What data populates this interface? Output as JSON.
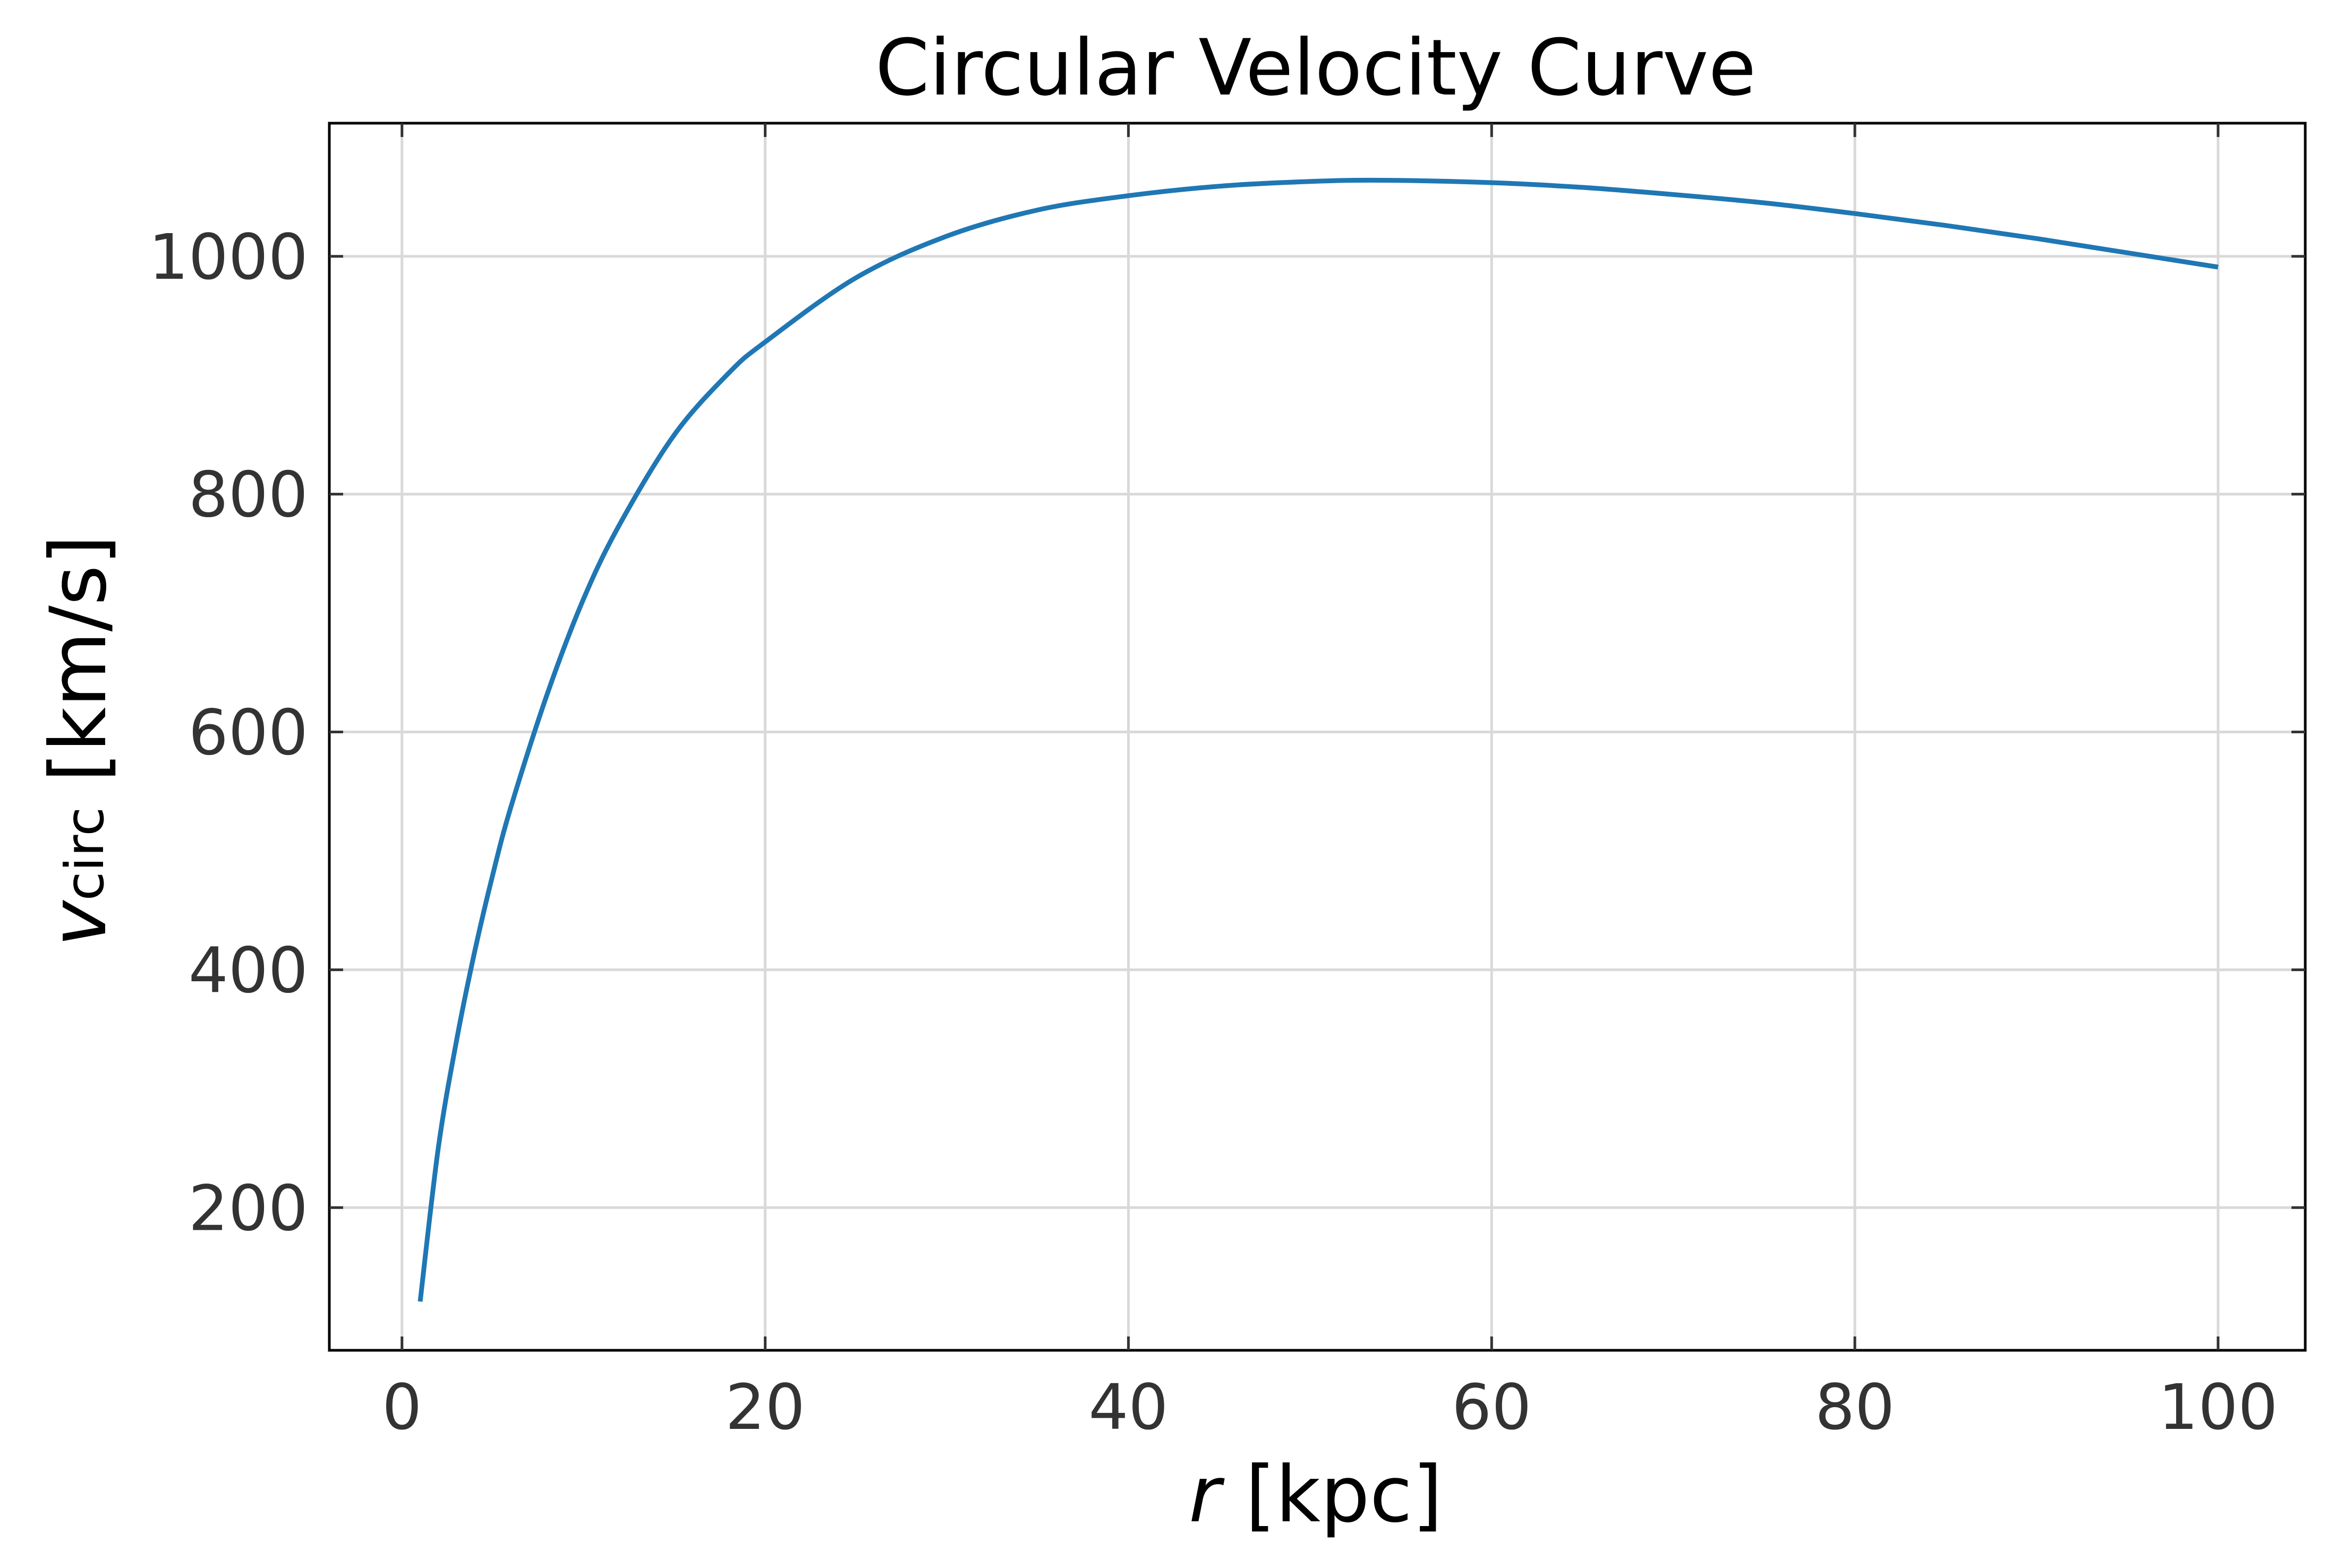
{
  "chart_data": {
    "type": "line",
    "title": "Circular Velocity Curve",
    "xlabel": {
      "symbol": "r",
      "unit": " [kpc]"
    },
    "ylabel": {
      "symbol": "v",
      "subscript": "circ",
      "unit": " [km/s]"
    },
    "xlim": [
      -4,
      104.8
    ],
    "ylim": [
      80,
      1112
    ],
    "xticks": [
      0,
      20,
      40,
      60,
      80,
      100
    ],
    "xtick_labels": [
      "0",
      "20",
      "40",
      "60",
      "80",
      "100"
    ],
    "yticks": [
      200,
      400,
      600,
      800,
      1000
    ],
    "ytick_labels": [
      "200",
      "400",
      "600",
      "800",
      "1000"
    ],
    "grid": true,
    "legend": "none",
    "series": [
      {
        "color": "#1f77b4",
        "x": [
          1,
          2,
          3,
          4,
          5,
          6,
          8,
          10,
          12,
          15,
          18,
          20,
          25,
          30,
          35,
          40,
          45,
          50,
          54,
          60,
          65,
          70,
          75,
          80,
          85,
          90,
          95,
          100
        ],
        "y": [
          121,
          250,
          340,
          415,
          480,
          537,
          632,
          712,
          775,
          850,
          902,
          928,
          982,
          1017,
          1039,
          1051,
          1059,
          1063,
          1064,
          1062,
          1058,
          1052,
          1045,
          1036,
          1026,
          1015,
          1003,
          991
        ]
      }
    ]
  }
}
